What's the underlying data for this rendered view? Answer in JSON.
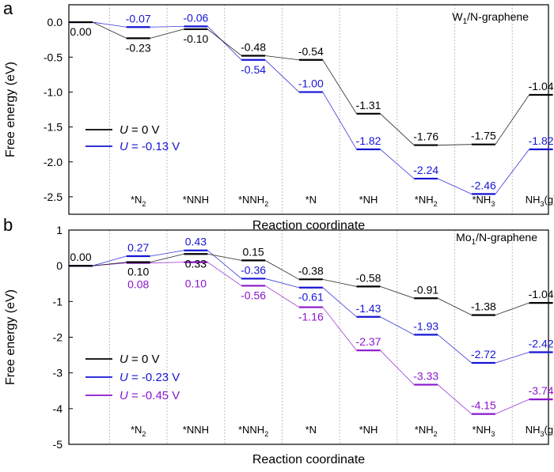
{
  "chart_data": [
    {
      "type": "line",
      "panel_label": "a",
      "title": "W1/N-graphene",
      "title_base": "W",
      "title_sub": "1",
      "title_rest": "/N-graphene",
      "xlabel": "Reaction coordinate",
      "ylabel": "Free energy (eV)",
      "ylim": [
        -2.75,
        0.25
      ],
      "yticks": [
        0.0,
        -0.5,
        -1.0,
        -1.5,
        -2.0,
        -2.5
      ],
      "ytick_labels": [
        "0.0",
        "-0.5",
        "-1.0",
        "-1.5",
        "-2.0",
        "-2.5"
      ],
      "legend_position": "middle-left",
      "categories": [
        {
          "base": "",
          "sub": "",
          "rest": ""
        },
        {
          "base": "*N",
          "sub": "2",
          "rest": ""
        },
        {
          "base": "*NNH",
          "sub": "",
          "rest": ""
        },
        {
          "base": "*NNH",
          "sub": "2",
          "rest": ""
        },
        {
          "base": "*N",
          "sub": "",
          "rest": ""
        },
        {
          "base": "*NH",
          "sub": "",
          "rest": ""
        },
        {
          "base": "*NH",
          "sub": "2",
          "rest": ""
        },
        {
          "base": "*NH",
          "sub": "3",
          "rest": ""
        },
        {
          "base": "NH",
          "sub": "3",
          "rest": "(g)"
        }
      ],
      "series": [
        {
          "name": "U = 0 V",
          "legend_var": "U",
          "legend_rest": " = 0 V",
          "color": "#000000",
          "values": [
            0.0,
            -0.23,
            -0.1,
            -0.48,
            -0.54,
            -1.31,
            -1.76,
            -1.75,
            -1.04
          ],
          "labels": [
            "0.00",
            "-0.23",
            "-0.10",
            "-0.48",
            "-0.54",
            "-1.31",
            "-1.76",
            "-1.75",
            "-1.04"
          ],
          "label_pos": [
            "below",
            "below",
            "below",
            "above",
            "above",
            "above",
            "above",
            "above",
            "above"
          ]
        },
        {
          "name": "U = -0.13 V",
          "legend_var": "U",
          "legend_rest": " = -0.13 V",
          "color": "#1515d4",
          "values": [
            0.0,
            -0.07,
            -0.06,
            -0.54,
            -1.0,
            -1.82,
            -2.24,
            -2.46,
            -1.82
          ],
          "labels": [
            "",
            "-0.07",
            "-0.06",
            "-0.54",
            "-1.00",
            "-1.82",
            "-2.24",
            "-2.46",
            "-1.82"
          ],
          "label_pos": [
            "none",
            "above",
            "above",
            "below",
            "above",
            "above",
            "above",
            "above",
            "above"
          ]
        }
      ]
    },
    {
      "type": "line",
      "panel_label": "b",
      "title": "Mo1/N-graphene",
      "title_base": "Mo",
      "title_sub": "1",
      "title_rest": "/N-graphene",
      "xlabel": "Reaction coordinate",
      "ylabel": "Free energy (eV)",
      "ylim": [
        -5,
        1
      ],
      "yticks": [
        1,
        0,
        -1,
        -2,
        -3,
        -4,
        -5
      ],
      "ytick_labels": [
        "1",
        "0",
        "-1",
        "-2",
        "-3",
        "-4",
        "-5"
      ],
      "legend_position": "lower-left",
      "categories": [
        {
          "base": "",
          "sub": "",
          "rest": ""
        },
        {
          "base": "*N",
          "sub": "2",
          "rest": ""
        },
        {
          "base": "*NNH",
          "sub": "",
          "rest": ""
        },
        {
          "base": "*NNH",
          "sub": "2",
          "rest": ""
        },
        {
          "base": "*N",
          "sub": "",
          "rest": ""
        },
        {
          "base": "*NH",
          "sub": "",
          "rest": ""
        },
        {
          "base": "*NH",
          "sub": "2",
          "rest": ""
        },
        {
          "base": "*NH",
          "sub": "3",
          "rest": ""
        },
        {
          "base": "NH",
          "sub": "3",
          "rest": "(g)"
        }
      ],
      "series": [
        {
          "name": "U = 0 V",
          "legend_var": "U",
          "legend_rest": " = 0 V",
          "color": "#000000",
          "values": [
            0.0,
            0.1,
            0.33,
            0.15,
            -0.38,
            -0.58,
            -0.91,
            -1.38,
            -1.04
          ],
          "labels": [
            "0.00",
            "0.10",
            "0.33",
            "0.15",
            "-0.38",
            "-0.58",
            "-0.91",
            "-1.38",
            "-1.04"
          ],
          "label_pos": [
            "above",
            "below",
            "below",
            "above",
            "above",
            "above",
            "above",
            "above",
            "above"
          ]
        },
        {
          "name": "U = -0.23 V",
          "legend_var": "U",
          "legend_rest": " = -0.23 V",
          "color": "#1515d4",
          "values": [
            0.0,
            0.27,
            0.43,
            -0.36,
            -0.61,
            -1.43,
            -1.93,
            -2.72,
            -2.42
          ],
          "labels": [
            "",
            "0.27",
            "0.43",
            "-0.36",
            "-0.61",
            "-1.43",
            "-1.93",
            "-2.72",
            "-2.42"
          ],
          "label_pos": [
            "none",
            "above",
            "above",
            "above",
            "below",
            "above",
            "above",
            "above",
            "above"
          ]
        },
        {
          "name": "U = -0.45 V",
          "legend_var": "U",
          "legend_rest": " = -0.45 V",
          "color": "#8a16cc",
          "values": [
            0.0,
            0.08,
            0.1,
            -0.56,
            -1.16,
            -2.37,
            -3.33,
            -4.15,
            -3.74
          ],
          "labels": [
            "",
            "0.08",
            "0.10",
            "-0.56",
            "-1.16",
            "-2.37",
            "-3.33",
            "-4.15",
            "-3.74"
          ],
          "label_pos": [
            "none",
            "below2",
            "below2",
            "below",
            "below",
            "above",
            "above",
            "above",
            "above"
          ]
        }
      ]
    }
  ]
}
